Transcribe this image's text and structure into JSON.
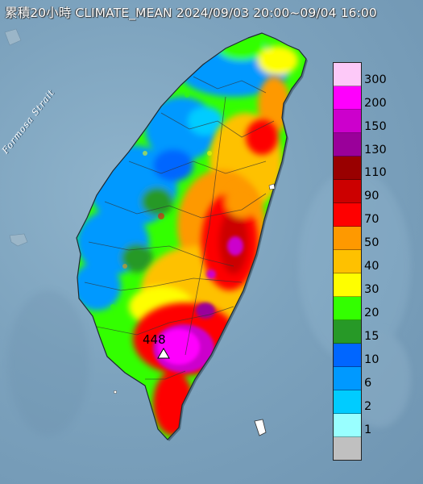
{
  "title": "累積20小時 CLIMATE_MEAN 2024/09/03 20:00~09/04 16:00",
  "strait_label": "Formosa Strait",
  "max_value_label": "448",
  "legend": {
    "labels": [
      "300",
      "200",
      "150",
      "130",
      "110",
      "90",
      "70",
      "50",
      "40",
      "30",
      "20",
      "15",
      "10",
      "6",
      "2",
      "1"
    ],
    "colors": [
      "#fdc9f8",
      "#fe00fd",
      "#cc00cc",
      "#9a009a",
      "#990000",
      "#cc0000",
      "#fe0000",
      "#fe9900",
      "#fec100",
      "#fefe00",
      "#33ff00",
      "#279927",
      "#0066ff",
      "#0099ff",
      "#00ccff",
      "#99ffff",
      "#c0c0c0"
    ]
  },
  "colors": {
    "sea": "#7da3be",
    "island_shadow": "#3a4f5e"
  }
}
